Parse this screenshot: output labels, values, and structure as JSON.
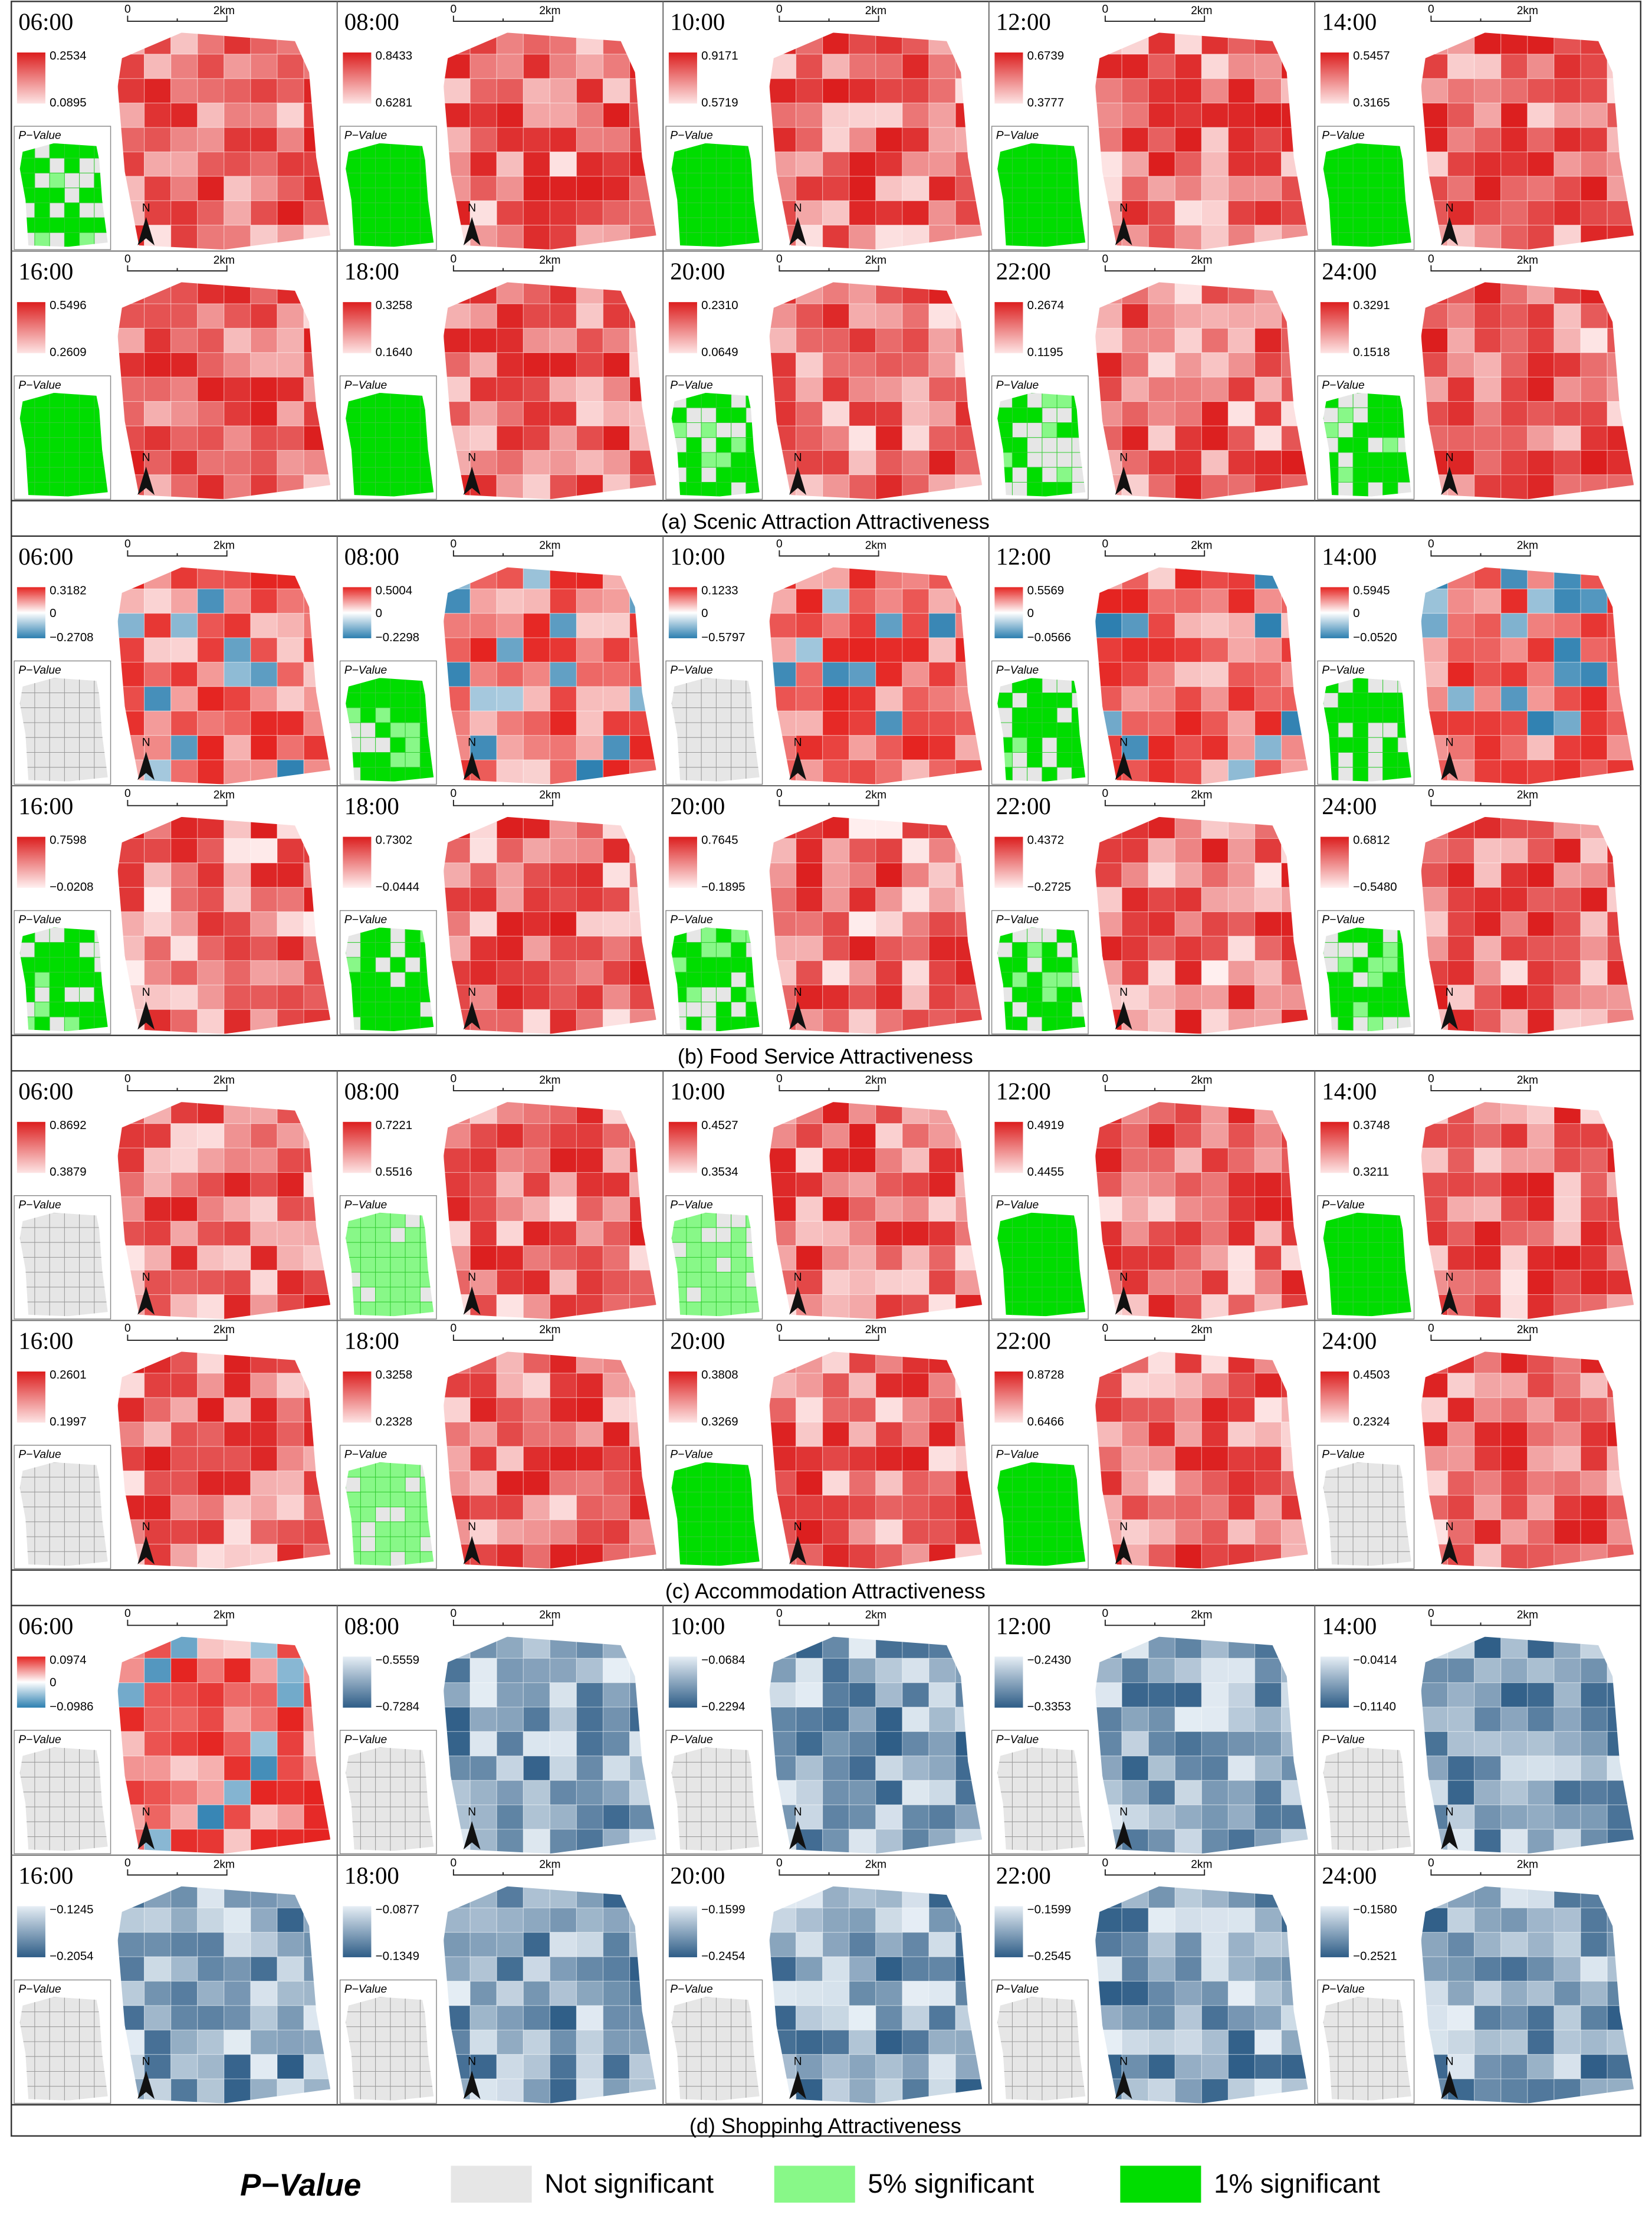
{
  "p_value_label": "P−Value",
  "scale_bar": {
    "start": "0",
    "end": "2km"
  },
  "north": "N",
  "diverging_colors": [
    "#e52421",
    "#ffffff",
    "#2c7fb0"
  ],
  "significance_colors": {
    "none": "#e6e6e6",
    "p05": "#88f888",
    "p01": "#00dd00"
  },
  "sections": [
    {
      "title": "(a) Scenic Attraction Attractiveness",
      "colors": [
        "#dc1e1e",
        "#fde4e4"
      ],
      "panels": [
        {
          "time": "06:00",
          "max": "0.2534",
          "min": "0.0895",
          "significance": "mixed"
        },
        {
          "time": "08:00",
          "max": "0.8433",
          "min": "0.6281",
          "significance": "p01"
        },
        {
          "time": "10:00",
          "max": "0.9171",
          "min": "0.5719",
          "significance": "p01"
        },
        {
          "time": "12:00",
          "max": "0.6739",
          "min": "0.3777",
          "significance": "p01"
        },
        {
          "time": "14:00",
          "max": "0.5457",
          "min": "0.3165",
          "significance": "p01"
        },
        {
          "time": "16:00",
          "max": "0.5496",
          "min": "0.2609",
          "significance": "p01"
        },
        {
          "time": "18:00",
          "max": "0.3258",
          "min": "0.1640",
          "significance": "p01"
        },
        {
          "time": "20:00",
          "max": "0.2310",
          "min": "0.0649",
          "significance": "mixed"
        },
        {
          "time": "22:00",
          "max": "0.2674",
          "min": "0.1195",
          "significance": "mixed"
        },
        {
          "time": "24:00",
          "max": "0.3291",
          "min": "0.1518",
          "significance": "mixed"
        }
      ]
    },
    {
      "title": "(b) Food Service Attractiveness",
      "colors": [
        "#dc1e1e",
        "#fff0f0"
      ],
      "panels": [
        {
          "time": "06:00",
          "max": "0.3182",
          "mid": "0",
          "min": "−0.2708",
          "significance": "none"
        },
        {
          "time": "08:00",
          "max": "0.5004",
          "mid": "0",
          "min": "−0.2298",
          "significance": "mixed"
        },
        {
          "time": "10:00",
          "max": "0.1233",
          "mid": "0",
          "min": "−0.5797",
          "significance": "none"
        },
        {
          "time": "12:00",
          "max": "0.5569",
          "mid": "0",
          "min": "−0.0566",
          "significance": "mixed"
        },
        {
          "time": "14:00",
          "max": "0.5945",
          "mid": "0",
          "min": "−0.0520",
          "significance": "mixed"
        },
        {
          "time": "16:00",
          "max": "0.7598",
          "min": "−0.0208",
          "significance": "mixed"
        },
        {
          "time": "18:00",
          "max": "0.7302",
          "min": "−0.0444",
          "significance": "mixed"
        },
        {
          "time": "20:00",
          "max": "0.7645",
          "min": "−0.1895",
          "significance": "mixed"
        },
        {
          "time": "22:00",
          "max": "0.4372",
          "min": "−0.2725",
          "significance": "mixed"
        },
        {
          "time": "24:00",
          "max": "0.6812",
          "min": "−0.5480",
          "significance": "mixed"
        }
      ]
    },
    {
      "title": "(c) Accommodation  Attractiveness",
      "colors": [
        "#dc1e1e",
        "#fde4e4"
      ],
      "panels": [
        {
          "time": "06:00",
          "max": "0.8692",
          "min": "0.3879",
          "significance": "none"
        },
        {
          "time": "08:00",
          "max": "0.7221",
          "min": "0.5516",
          "significance": "p05"
        },
        {
          "time": "10:00",
          "max": "0.4527",
          "min": "0.3534",
          "significance": "p05"
        },
        {
          "time": "12:00",
          "max": "0.4919",
          "min": "0.4455",
          "significance": "p01"
        },
        {
          "time": "14:00",
          "max": "0.3748",
          "min": "0.3211",
          "significance": "p01"
        },
        {
          "time": "16:00",
          "max": "0.2601",
          "min": "0.1997",
          "significance": "none"
        },
        {
          "time": "18:00",
          "max": "0.3258",
          "min": "0.2328",
          "significance": "p05"
        },
        {
          "time": "20:00",
          "max": "0.3808",
          "min": "0.3269",
          "significance": "p01"
        },
        {
          "time": "22:00",
          "max": "0.8728",
          "min": "0.6466",
          "significance": "p01"
        },
        {
          "time": "24:00",
          "max": "0.4503",
          "min": "0.2324",
          "significance": "none"
        }
      ]
    },
    {
      "title": "(d) Shoppinhg  Attractiveness",
      "colors": [
        "#e6eef5",
        "#2e5d87"
      ],
      "panels": [
        {
          "time": "06:00",
          "max": "0.0974",
          "mid": "0",
          "min": "−0.0986",
          "significance": "none"
        },
        {
          "time": "08:00",
          "max": "−0.5559",
          "min": "−0.7284",
          "significance": "none"
        },
        {
          "time": "10:00",
          "max": "−0.0684",
          "min": "−0.2294",
          "significance": "none"
        },
        {
          "time": "12:00",
          "max": "−0.2430",
          "min": "−0.3353",
          "significance": "none"
        },
        {
          "time": "14:00",
          "max": "−0.0414",
          "min": "−0.1140",
          "significance": "none"
        },
        {
          "time": "16:00",
          "max": "−0.1245",
          "min": "−0.2054",
          "significance": "none"
        },
        {
          "time": "18:00",
          "max": "−0.0877",
          "min": "−0.1349",
          "significance": "none"
        },
        {
          "time": "20:00",
          "max": "−0.1599",
          "min": "−0.2454",
          "significance": "none"
        },
        {
          "time": "22:00",
          "max": "−0.1599",
          "min": "−0.2545",
          "significance": "none"
        },
        {
          "time": "24:00",
          "max": "−0.1580",
          "min": "−0.2521",
          "significance": "none"
        }
      ]
    }
  ],
  "legend": {
    "title": "P−Value",
    "items": [
      {
        "key": "none",
        "label": "Not significant"
      },
      {
        "key": "p05",
        "label": "5% significant"
      },
      {
        "key": "p01",
        "label": "1% significant"
      }
    ]
  }
}
